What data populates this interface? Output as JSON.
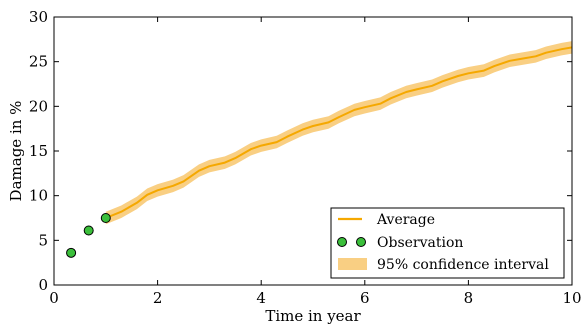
{
  "chart_data": {
    "type": "line",
    "xlabel": "Time in year",
    "ylabel": "Damage in %",
    "xlim": [
      0,
      10
    ],
    "ylim": [
      0,
      30
    ],
    "xticks": [
      0,
      2,
      4,
      6,
      8,
      10
    ],
    "yticks": [
      0,
      5,
      10,
      15,
      20,
      25,
      30
    ],
    "grid": false,
    "legend_position": "bottom-right",
    "series": [
      {
        "name": "Average",
        "kind": "line",
        "color": "#f5a800",
        "x": [
          1.0,
          1.3,
          1.6,
          1.8,
          2.0,
          2.3,
          2.5,
          2.8,
          3.0,
          3.3,
          3.5,
          3.8,
          4.0,
          4.3,
          4.5,
          4.8,
          5.0,
          5.3,
          5.5,
          5.8,
          6.0,
          6.3,
          6.5,
          6.8,
          7.0,
          7.3,
          7.5,
          7.8,
          8.0,
          8.3,
          8.5,
          8.8,
          9.0,
          9.3,
          9.5,
          9.8,
          10.0
        ],
        "y": [
          7.5,
          8.2,
          9.2,
          10.1,
          10.6,
          11.1,
          11.6,
          12.8,
          13.3,
          13.7,
          14.2,
          15.2,
          15.6,
          16.0,
          16.6,
          17.4,
          17.8,
          18.2,
          18.8,
          19.6,
          19.9,
          20.3,
          20.9,
          21.6,
          21.9,
          22.3,
          22.8,
          23.4,
          23.7,
          24.0,
          24.5,
          25.1,
          25.3,
          25.6,
          26.0,
          26.4,
          26.6
        ]
      },
      {
        "name": "Observation",
        "kind": "scatter",
        "color": "#3bbf3b",
        "x": [
          0.33,
          0.67,
          1.0
        ],
        "y": [
          3.6,
          6.1,
          7.5
        ]
      },
      {
        "name": "95% confidence interval",
        "kind": "band",
        "color": "#f9cf83",
        "half_width": 0.7
      }
    ],
    "legend": [
      "Average",
      "Observation",
      "95% confidence interval"
    ]
  }
}
